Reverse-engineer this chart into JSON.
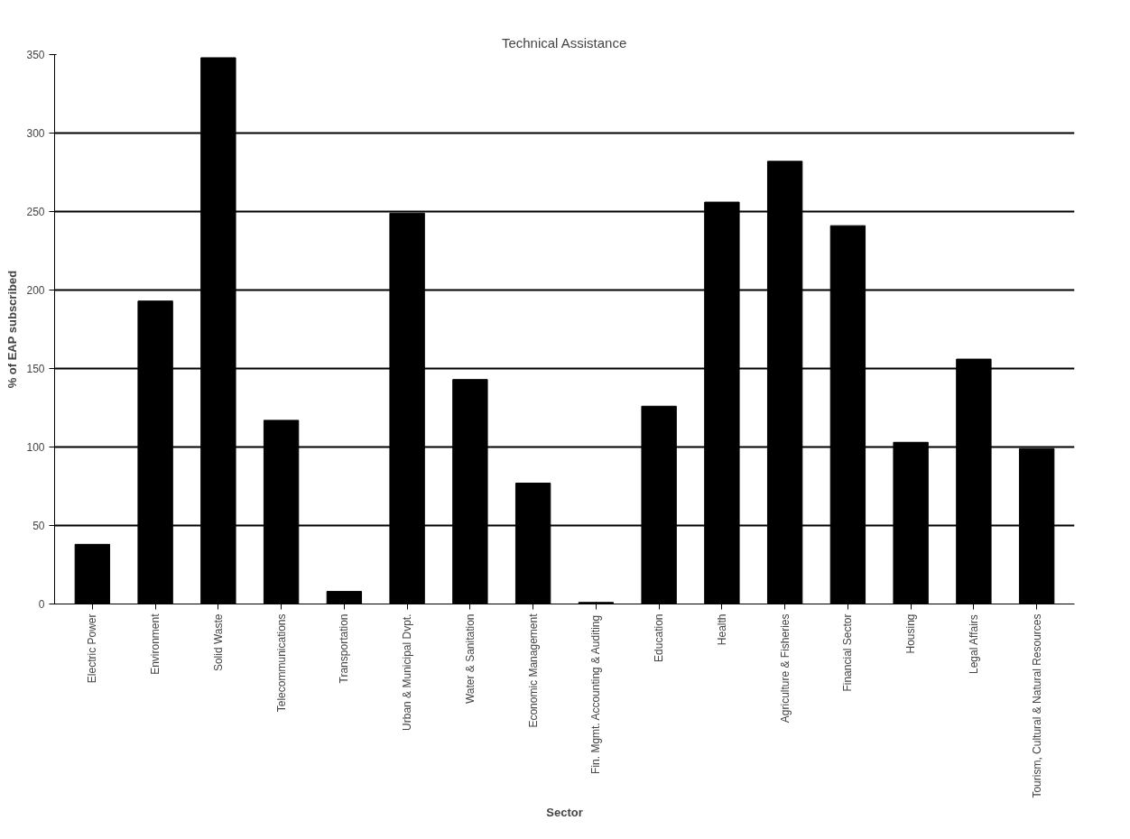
{
  "chart_data": {
    "type": "bar",
    "title": "Technical Assistance",
    "xlabel": "Sector",
    "ylabel": "% of EAP subscribed",
    "categories": [
      "Electric Power",
      "Environment",
      "Solid Waste",
      "Telecommunications",
      "Transportation",
      "Urban & Municipal Dvpt.",
      "Water & Sanitation",
      "Economic Management",
      "Fin. Mgmt. Accounting & Auditing",
      "Education",
      "Health",
      "Agriculture & Fisheries",
      "Financial Sector",
      "Housing",
      "Legal Affairs",
      "Tourism, Cultural & Natural Resources"
    ],
    "values": [
      38,
      193,
      348,
      117,
      8,
      249,
      143,
      77,
      1,
      126,
      256,
      282,
      241,
      103,
      156,
      99
    ],
    "color": "#000000",
    "ylim": [
      0,
      350
    ],
    "yticks": [
      0,
      50,
      100,
      150,
      200,
      250,
      300,
      350
    ],
    "grid": "y"
  }
}
